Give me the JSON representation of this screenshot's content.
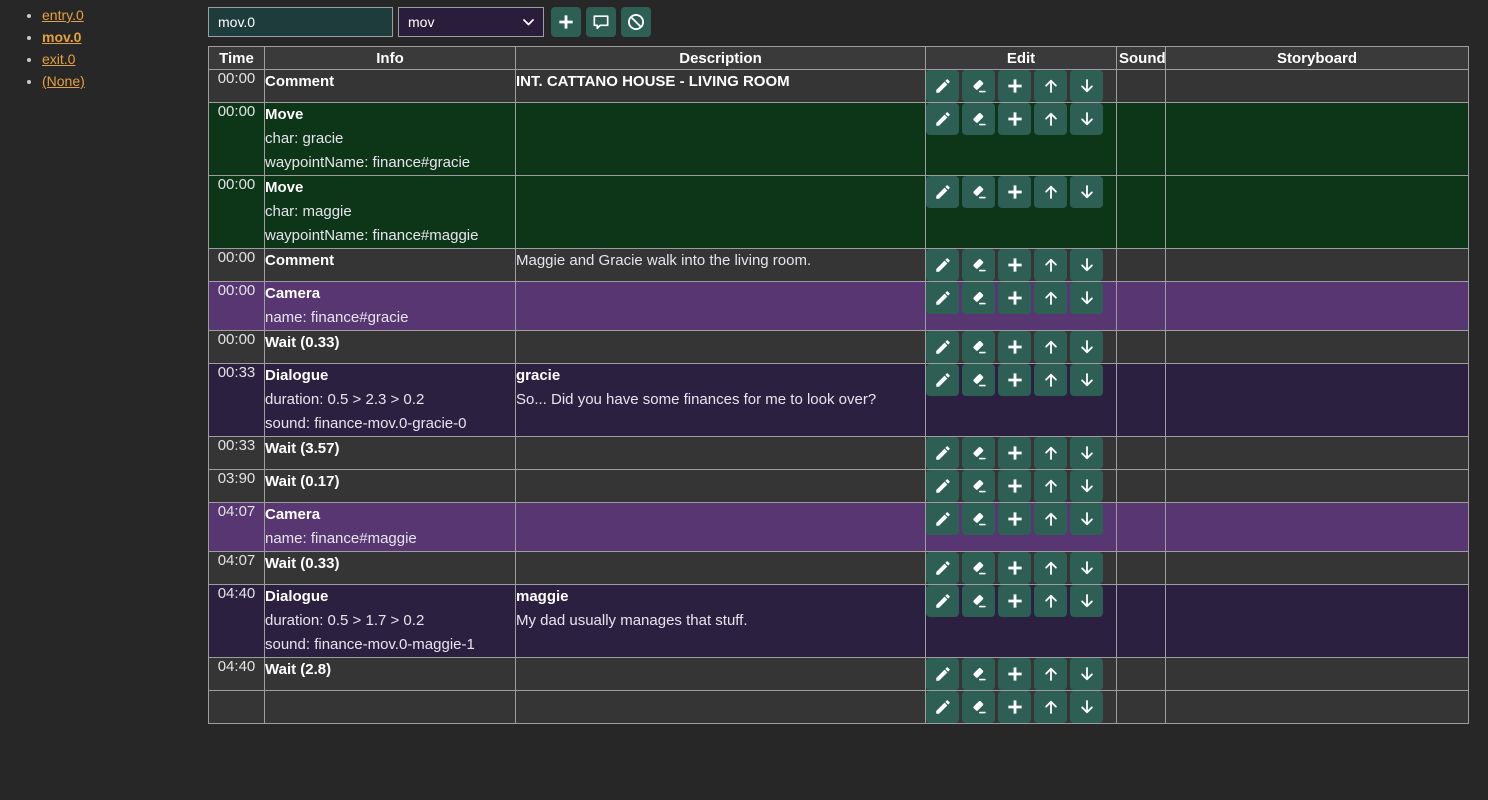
{
  "sidebar": {
    "items": [
      {
        "label": "entry.0",
        "active": false
      },
      {
        "label": "mov.0",
        "active": true
      },
      {
        "label": "exit.0",
        "active": false
      },
      {
        "label": "(None)",
        "active": false
      }
    ]
  },
  "toolbar": {
    "name_input_value": "mov.0",
    "type_select_value": "mov",
    "buttons": [
      {
        "name": "add",
        "icon": "plus"
      },
      {
        "name": "comment",
        "icon": "speech-bubble"
      },
      {
        "name": "disable",
        "icon": "prohibition"
      }
    ]
  },
  "table": {
    "columns": [
      "Time",
      "Info",
      "Description",
      "Edit",
      "Sound",
      "Storyboard"
    ],
    "row_actions": [
      "edit",
      "erase",
      "add",
      "move-up",
      "move-down"
    ],
    "colors": {
      "row_default": "#353535",
      "row_move": "#0d3517",
      "row_camera": "#573672",
      "row_dialogue": "#2c2040",
      "action_button": "#2e5f55",
      "link": "#e3a140"
    },
    "rows": [
      {
        "time": "00:00",
        "variant": "default",
        "info_title": "Comment",
        "info_lines": [],
        "desc_title": "",
        "desc_lines": [
          "INT. CATTANO HOUSE - LIVING ROOM"
        ],
        "desc_bold": true
      },
      {
        "time": "00:00",
        "variant": "move",
        "info_title": "Move",
        "info_lines": [
          "char: gracie",
          "waypointName: finance#gracie"
        ],
        "desc_title": "",
        "desc_lines": [],
        "desc_bold": false
      },
      {
        "time": "00:00",
        "variant": "move",
        "info_title": "Move",
        "info_lines": [
          "char: maggie",
          "waypointName: finance#maggie"
        ],
        "desc_title": "",
        "desc_lines": [],
        "desc_bold": false
      },
      {
        "time": "00:00",
        "variant": "default",
        "info_title": "Comment",
        "info_lines": [],
        "desc_title": "",
        "desc_lines": [
          "Maggie and Gracie walk into the living room."
        ],
        "desc_bold": false
      },
      {
        "time": "00:00",
        "variant": "camera",
        "info_title": "Camera",
        "info_lines": [
          "name: finance#gracie"
        ],
        "desc_title": "",
        "desc_lines": [],
        "desc_bold": false
      },
      {
        "time": "00:00",
        "variant": "default",
        "info_title": "Wait (0.33)",
        "info_lines": [],
        "desc_title": "",
        "desc_lines": [],
        "desc_bold": false
      },
      {
        "time": "00:33",
        "variant": "dialogue",
        "info_title": "Dialogue",
        "info_lines": [
          "duration: 0.5 > 2.3 > 0.2",
          "sound: finance-mov.0-gracie-0"
        ],
        "desc_title": "gracie",
        "desc_lines": [
          "So... Did you have some finances for me to look over?"
        ],
        "desc_bold": false
      },
      {
        "time": "00:33",
        "variant": "default",
        "info_title": "Wait (3.57)",
        "info_lines": [],
        "desc_title": "",
        "desc_lines": [],
        "desc_bold": false
      },
      {
        "time": "03:90",
        "variant": "default",
        "info_title": "Wait (0.17)",
        "info_lines": [],
        "desc_title": "",
        "desc_lines": [],
        "desc_bold": false
      },
      {
        "time": "04:07",
        "variant": "camera",
        "info_title": "Camera",
        "info_lines": [
          "name: finance#maggie"
        ],
        "desc_title": "",
        "desc_lines": [],
        "desc_bold": false
      },
      {
        "time": "04:07",
        "variant": "default",
        "info_title": "Wait (0.33)",
        "info_lines": [],
        "desc_title": "",
        "desc_lines": [],
        "desc_bold": false
      },
      {
        "time": "04:40",
        "variant": "dialogue",
        "info_title": "Dialogue",
        "info_lines": [
          "duration: 0.5 > 1.7 > 0.2",
          "sound: finance-mov.0-maggie-1"
        ],
        "desc_title": "maggie",
        "desc_lines": [
          "My dad usually manages that stuff."
        ],
        "desc_bold": false
      },
      {
        "time": "04:40",
        "variant": "default",
        "info_title": "Wait (2.8)",
        "info_lines": [],
        "desc_title": "",
        "desc_lines": [],
        "desc_bold": false
      },
      {
        "time": "",
        "variant": "default",
        "info_title": "",
        "info_lines": [],
        "desc_title": "",
        "desc_lines": [],
        "desc_bold": false,
        "partial": true
      }
    ]
  }
}
